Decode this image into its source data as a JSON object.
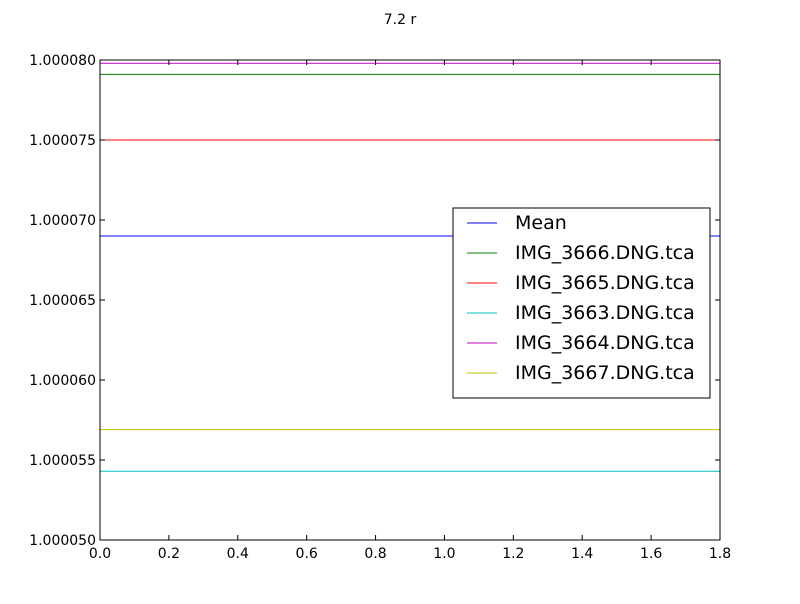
{
  "chart_data": {
    "type": "line",
    "title": "7.2 r",
    "xlabel": "",
    "ylabel": "",
    "xlim": [
      0.0,
      1.8
    ],
    "ylim": [
      1.00005,
      1.00008
    ],
    "x_ticks": [
      "0.0",
      "0.2",
      "0.4",
      "0.6",
      "0.8",
      "1.0",
      "1.2",
      "1.4",
      "1.6",
      "1.8"
    ],
    "y_ticks": [
      "1.000050",
      "1.000055",
      "1.000060",
      "1.000065",
      "1.000070",
      "1.000075",
      "1.000080"
    ],
    "grid": false,
    "legend_position": "center-right",
    "x": [
      0.0,
      1.8
    ],
    "series": [
      {
        "name": "Mean",
        "color": "#0000ff",
        "values": [
          1.000069,
          1.000069
        ]
      },
      {
        "name": "IMG_3666.DNG.tca",
        "color": "#008000",
        "values": [
          1.0000791,
          1.0000791
        ]
      },
      {
        "name": "IMG_3665.DNG.tca",
        "color": "#ff0000",
        "values": [
          1.000075,
          1.000075
        ]
      },
      {
        "name": "IMG_3663.DNG.tca",
        "color": "#00bfbf",
        "values": [
          1.0000543,
          1.0000543
        ]
      },
      {
        "name": "IMG_3664.DNG.tca",
        "color": "#bf00bf",
        "values": [
          1.0000798,
          1.0000798
        ]
      },
      {
        "name": "IMG_3667.DNG.tca",
        "color": "#bfbf00",
        "values": [
          1.0000569,
          1.0000569
        ]
      }
    ]
  }
}
